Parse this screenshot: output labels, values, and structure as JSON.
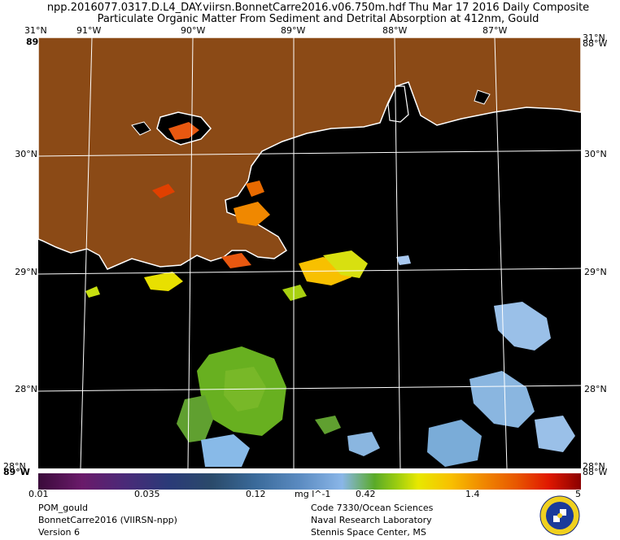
{
  "header": {
    "line1": "npp.2016077.0317.D.L4_DAY.viirsn.BonnetCarre2016.v06.750m.hdf    Thu Mar 17 2016 Daily Composite",
    "line2": "Particulate Organic Matter From Sediment and Detrital Absorption at 412nm, Gould"
  },
  "map": {
    "lat_labels": [
      "31°N",
      "30°N",
      "29°N",
      "28°N"
    ],
    "lon_labels": [
      "91°W",
      "90°W",
      "89°W",
      "88°W",
      "87°W"
    ],
    "corner_top_right": "31°N",
    "corner_bottom_right": "88°W",
    "corner_top_left_lon": "89°W",
    "corner_bottom_left_lon": "89°W",
    "corner_bottom_left_lat": "28°N",
    "colors": {
      "land": "#8b4a16",
      "water": "#000000",
      "grid": "#ffffff",
      "coast": "#ffffff"
    }
  },
  "colorbar": {
    "ticks": [
      "0.01",
      "0.035",
      "0.12",
      "0.42",
      "1.4",
      "5"
    ],
    "units": "mg l^-1"
  },
  "footer": {
    "left": [
      "POM_gould",
      "BonnetCarre2016 (VIIRSN-npp)",
      "Version 6"
    ],
    "right": [
      "Code 7330/Ocean Sciences",
      "Naval Research Laboratory",
      "Stennis Space Center, MS"
    ]
  },
  "icons": {
    "logo": "naval-research-laboratory-seal-icon"
  }
}
